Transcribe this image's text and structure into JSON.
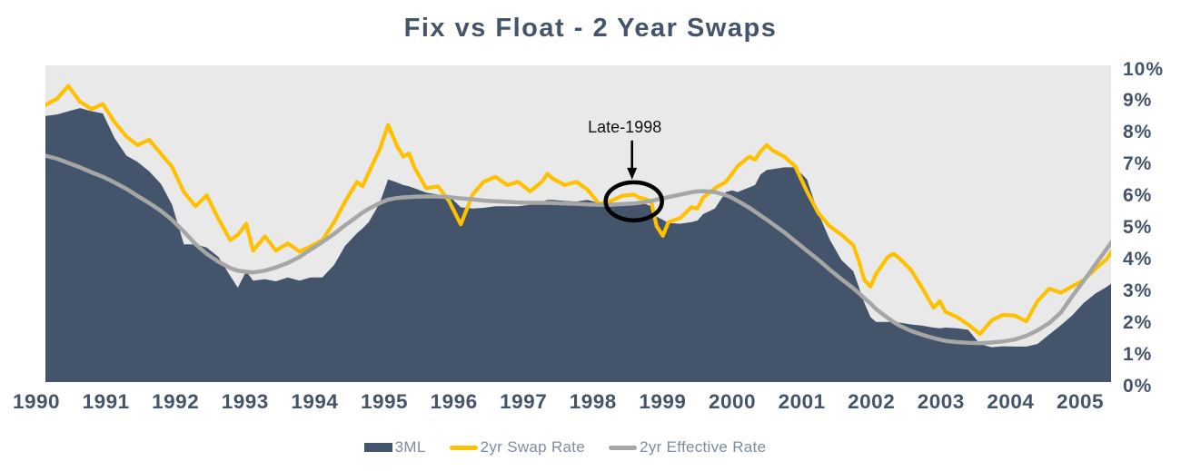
{
  "title": "Fix vs Float - 2 Year Swaps",
  "colors": {
    "navy_area": "#44546A",
    "swap_line": "#FFC000",
    "effective_line": "#A6A6A6",
    "plot_background": "#E9E9E9",
    "axis_text": "#44546A",
    "legend_text": "#7E8CA0",
    "annotation": "#000000"
  },
  "legend": {
    "items": [
      {
        "label": "3ML",
        "type": "area",
        "color": "#44546A"
      },
      {
        "label": "2yr Swap Rate",
        "type": "line",
        "color": "#FFC000"
      },
      {
        "label": "2yr Effective Rate",
        "type": "line",
        "color": "#A6A6A6"
      }
    ]
  },
  "chart_data": {
    "type": "area",
    "title": "Fix vs Float - 2 Year Swaps",
    "xlabel": "",
    "ylabel": "",
    "grid": false,
    "legend_position": "bottom",
    "ylim": [
      0,
      10
    ],
    "y_tick_labels": [
      "0%",
      "1%",
      "2%",
      "3%",
      "4%",
      "5%",
      "6%",
      "7%",
      "8%",
      "9%",
      "10%"
    ],
    "x_ticks": [
      "1990",
      "1991",
      "1992",
      "1993",
      "1994",
      "1995",
      "1996",
      "1997",
      "1998",
      "1999",
      "2000",
      "2001",
      "2002",
      "2003",
      "2004",
      "2005"
    ],
    "x_range": [
      1990.0,
      2005.42
    ],
    "annotation": {
      "label": "Late-1998",
      "x": 1998.5,
      "y": 5.65
    },
    "x": [
      1990.0,
      1990.17,
      1990.33,
      1990.5,
      1990.67,
      1990.83,
      1991.0,
      1991.17,
      1991.33,
      1991.5,
      1991.67,
      1991.83,
      1992.0,
      1992.17,
      1992.33,
      1992.5,
      1992.67,
      1992.78,
      1992.9,
      1993.0,
      1993.17,
      1993.33,
      1993.5,
      1993.67,
      1993.83,
      1994.0,
      1994.17,
      1994.33,
      1994.5,
      1994.58,
      1994.67,
      1994.83,
      1994.95,
      1995.08,
      1995.17,
      1995.25,
      1995.33,
      1995.5,
      1995.67,
      1995.83,
      1996.0,
      1996.17,
      1996.33,
      1996.5,
      1996.67,
      1996.83,
      1997.0,
      1997.17,
      1997.25,
      1997.33,
      1997.5,
      1997.67,
      1997.83,
      1998.0,
      1998.17,
      1998.33,
      1998.5,
      1998.58,
      1998.67,
      1998.75,
      1998.83,
      1998.92,
      1999.0,
      1999.17,
      1999.33,
      1999.42,
      1999.5,
      1999.67,
      1999.83,
      1999.92,
      2000.0,
      2000.17,
      2000.25,
      2000.33,
      2000.42,
      2000.5,
      2000.67,
      2000.83,
      2001.0,
      2001.17,
      2001.33,
      2001.5,
      2001.67,
      2001.75,
      2001.83,
      2001.92,
      2002.0,
      2002.17,
      2002.25,
      2002.33,
      2002.5,
      2002.67,
      2002.83,
      2002.92,
      2003.0,
      2003.17,
      2003.33,
      2003.5,
      2003.67,
      2003.83,
      2004.0,
      2004.17,
      2004.33,
      2004.5,
      2004.67,
      2004.83,
      2005.0,
      2005.17,
      2005.33,
      2005.42
    ],
    "series": [
      {
        "name": "3ML",
        "type": "area",
        "color": "#44546A",
        "values": [
          8.4,
          8.45,
          8.55,
          8.65,
          8.55,
          8.48,
          7.7,
          7.15,
          6.95,
          6.65,
          6.25,
          5.6,
          4.35,
          4.35,
          4.25,
          3.95,
          3.35,
          2.98,
          3.5,
          3.2,
          3.25,
          3.18,
          3.3,
          3.2,
          3.3,
          3.3,
          3.7,
          4.3,
          4.7,
          4.85,
          5.05,
          5.65,
          6.4,
          6.3,
          6.22,
          6.18,
          6.12,
          5.98,
          5.92,
          5.88,
          5.52,
          5.48,
          5.5,
          5.55,
          5.55,
          5.55,
          5.6,
          5.7,
          5.75,
          5.75,
          5.72,
          5.7,
          5.75,
          5.65,
          5.65,
          5.67,
          5.7,
          5.67,
          5.62,
          5.55,
          5.22,
          5.12,
          5.02,
          5.0,
          5.05,
          5.1,
          5.3,
          5.48,
          6.0,
          6.05,
          6.0,
          6.15,
          6.22,
          6.55,
          6.7,
          6.72,
          6.78,
          6.78,
          6.4,
          5.3,
          4.5,
          3.85,
          3.5,
          3.0,
          2.5,
          2.05,
          1.9,
          1.9,
          1.9,
          1.88,
          1.82,
          1.78,
          1.72,
          1.7,
          1.72,
          1.7,
          1.65,
          1.2,
          1.1,
          1.13,
          1.12,
          1.12,
          1.2,
          1.5,
          1.8,
          2.1,
          2.5,
          2.8,
          3.0,
          3.15
        ]
      },
      {
        "name": "2yr Swap Rate",
        "type": "line",
        "color": "#FFC000",
        "values": [
          8.75,
          8.95,
          9.35,
          8.85,
          8.62,
          8.78,
          8.2,
          7.75,
          7.48,
          7.65,
          7.2,
          6.8,
          6.0,
          5.55,
          5.9,
          5.15,
          4.48,
          4.65,
          5.0,
          4.15,
          4.6,
          4.15,
          4.38,
          4.12,
          4.28,
          4.48,
          5.05,
          5.7,
          6.32,
          6.18,
          6.62,
          7.35,
          8.12,
          7.45,
          7.12,
          7.22,
          6.78,
          6.12,
          6.18,
          5.72,
          4.98,
          5.92,
          6.32,
          6.48,
          6.22,
          6.32,
          6.02,
          6.32,
          6.58,
          6.42,
          6.22,
          6.32,
          6.08,
          5.62,
          5.72,
          5.88,
          5.92,
          5.82,
          5.78,
          5.7,
          4.92,
          4.62,
          5.05,
          5.18,
          5.52,
          5.48,
          5.82,
          6.12,
          6.32,
          6.58,
          6.82,
          7.12,
          7.02,
          7.28,
          7.48,
          7.32,
          7.12,
          6.82,
          6.02,
          5.32,
          4.92,
          4.65,
          4.32,
          3.82,
          3.22,
          3.02,
          3.42,
          3.95,
          4.05,
          3.92,
          3.55,
          2.95,
          2.35,
          2.55,
          2.22,
          2.05,
          1.82,
          1.52,
          1.95,
          2.12,
          2.1,
          1.92,
          2.55,
          2.95,
          2.82,
          3.02,
          3.22,
          3.58,
          3.88,
          4.18
        ]
      },
      {
        "name": "2yr Effective Rate",
        "type": "line",
        "color": "#A6A6A6",
        "values": [
          7.15,
          7.05,
          6.92,
          6.78,
          6.62,
          6.48,
          6.3,
          6.1,
          5.88,
          5.65,
          5.4,
          5.12,
          4.75,
          4.35,
          4.05,
          3.8,
          3.6,
          3.52,
          3.48,
          3.46,
          3.52,
          3.62,
          3.76,
          3.95,
          4.18,
          4.42,
          4.68,
          4.95,
          5.22,
          5.35,
          5.47,
          5.65,
          5.76,
          5.81,
          5.83,
          5.84,
          5.85,
          5.86,
          5.86,
          5.84,
          5.8,
          5.77,
          5.73,
          5.71,
          5.69,
          5.67,
          5.66,
          5.66,
          5.66,
          5.65,
          5.64,
          5.63,
          5.61,
          5.6,
          5.6,
          5.62,
          5.64,
          5.66,
          5.69,
          5.72,
          5.76,
          5.8,
          5.84,
          5.92,
          5.99,
          6.02,
          6.03,
          6.0,
          5.9,
          5.82,
          5.72,
          5.5,
          5.38,
          5.26,
          5.13,
          5.0,
          4.73,
          4.45,
          4.15,
          3.85,
          3.55,
          3.25,
          2.96,
          2.81,
          2.65,
          2.48,
          2.3,
          2.02,
          1.9,
          1.79,
          1.62,
          1.49,
          1.39,
          1.34,
          1.3,
          1.26,
          1.24,
          1.23,
          1.25,
          1.28,
          1.34,
          1.46,
          1.63,
          1.86,
          2.2,
          2.7,
          3.2,
          3.72,
          4.2,
          4.48
        ]
      }
    ]
  }
}
